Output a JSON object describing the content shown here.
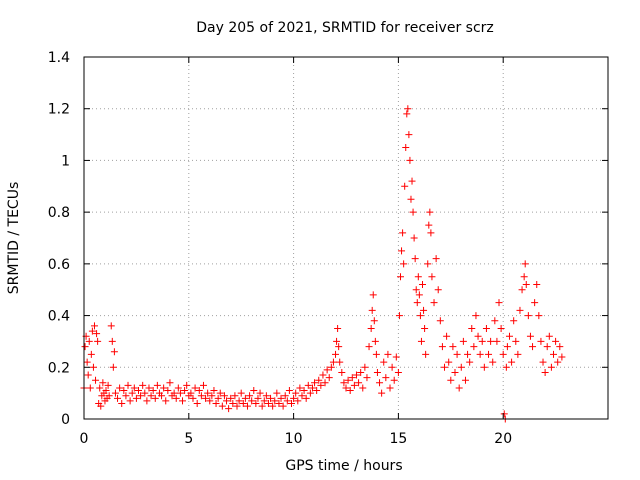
{
  "chart_data": {
    "type": "scatter",
    "title": "Day 205 of 2021, SRMTID for receiver scrz",
    "xlabel": "GPS time / hours",
    "ylabel": "SRMTID / TECUs",
    "xlim": [
      0,
      25
    ],
    "ylim": [
      0,
      1.4
    ],
    "xticks": [
      0,
      5,
      10,
      15,
      20
    ],
    "yticks": [
      0,
      0.2,
      0.4,
      0.6,
      0.8,
      1,
      1.2,
      1.4
    ],
    "xtick_labels": [
      "0",
      "5",
      "10",
      "15",
      "20"
    ],
    "ytick_labels": [
      "0",
      "0.2",
      "0.4",
      "0.6",
      "0.8",
      "1",
      "1.2",
      "1.4"
    ],
    "grid": true,
    "marker": "plus",
    "color": "#ff0000",
    "series": [
      {
        "name": "SRMTID",
        "points": [
          [
            0.0,
            0.12
          ],
          [
            0.05,
            0.28
          ],
          [
            0.1,
            0.32
          ],
          [
            0.15,
            0.22
          ],
          [
            0.2,
            0.17
          ],
          [
            0.25,
            0.3
          ],
          [
            0.3,
            0.12
          ],
          [
            0.35,
            0.25
          ],
          [
            0.4,
            0.34
          ],
          [
            0.45,
            0.2
          ],
          [
            0.5,
            0.36
          ],
          [
            0.55,
            0.15
          ],
          [
            0.6,
            0.33
          ],
          [
            0.65,
            0.3
          ],
          [
            0.7,
            0.06
          ],
          [
            0.75,
            0.12
          ],
          [
            0.8,
            0.05
          ],
          [
            0.85,
            0.09
          ],
          [
            0.9,
            0.14
          ],
          [
            0.95,
            0.1
          ],
          [
            1.0,
            0.07
          ],
          [
            1.05,
            0.11
          ],
          [
            1.1,
            0.08
          ],
          [
            1.15,
            0.13
          ],
          [
            1.2,
            0.09
          ],
          [
            1.3,
            0.36
          ],
          [
            1.35,
            0.3
          ],
          [
            1.4,
            0.2
          ],
          [
            1.45,
            0.26
          ],
          [
            1.5,
            0.1
          ],
          [
            1.6,
            0.08
          ],
          [
            1.7,
            0.12
          ],
          [
            1.8,
            0.06
          ],
          [
            1.9,
            0.11
          ],
          [
            2.0,
            0.09
          ],
          [
            2.1,
            0.13
          ],
          [
            2.2,
            0.07
          ],
          [
            2.3,
            0.1
          ],
          [
            2.4,
            0.12
          ],
          [
            2.5,
            0.08
          ],
          [
            2.6,
            0.11
          ],
          [
            2.7,
            0.09
          ],
          [
            2.8,
            0.13
          ],
          [
            2.9,
            0.1
          ],
          [
            3.0,
            0.07
          ],
          [
            3.1,
            0.12
          ],
          [
            3.2,
            0.09
          ],
          [
            3.3,
            0.11
          ],
          [
            3.4,
            0.08
          ],
          [
            3.5,
            0.13
          ],
          [
            3.6,
            0.1
          ],
          [
            3.7,
            0.09
          ],
          [
            3.8,
            0.12
          ],
          [
            3.9,
            0.07
          ],
          [
            4.0,
            0.11
          ],
          [
            4.1,
            0.14
          ],
          [
            4.2,
            0.09
          ],
          [
            4.3,
            0.1
          ],
          [
            4.4,
            0.08
          ],
          [
            4.5,
            0.12
          ],
          [
            4.6,
            0.1
          ],
          [
            4.7,
            0.07
          ],
          [
            4.8,
            0.11
          ],
          [
            4.9,
            0.13
          ],
          [
            5.0,
            0.09
          ],
          [
            5.1,
            0.1
          ],
          [
            5.2,
            0.08
          ],
          [
            5.3,
            0.12
          ],
          [
            5.4,
            0.06
          ],
          [
            5.5,
            0.11
          ],
          [
            5.6,
            0.09
          ],
          [
            5.7,
            0.13
          ],
          [
            5.8,
            0.08
          ],
          [
            5.9,
            0.1
          ],
          [
            6.0,
            0.07
          ],
          [
            6.1,
            0.09
          ],
          [
            6.2,
            0.11
          ],
          [
            6.3,
            0.06
          ],
          [
            6.4,
            0.08
          ],
          [
            6.5,
            0.1
          ],
          [
            6.6,
            0.05
          ],
          [
            6.7,
            0.09
          ],
          [
            6.8,
            0.07
          ],
          [
            6.9,
            0.04
          ],
          [
            7.0,
            0.08
          ],
          [
            7.1,
            0.06
          ],
          [
            7.2,
            0.09
          ],
          [
            7.3,
            0.05
          ],
          [
            7.4,
            0.07
          ],
          [
            7.5,
            0.1
          ],
          [
            7.6,
            0.06
          ],
          [
            7.7,
            0.08
          ],
          [
            7.8,
            0.05
          ],
          [
            7.9,
            0.09
          ],
          [
            8.0,
            0.07
          ],
          [
            8.1,
            0.11
          ],
          [
            8.2,
            0.06
          ],
          [
            8.3,
            0.08
          ],
          [
            8.4,
            0.1
          ],
          [
            8.5,
            0.05
          ],
          [
            8.6,
            0.07
          ],
          [
            8.7,
            0.09
          ],
          [
            8.8,
            0.06
          ],
          [
            8.9,
            0.08
          ],
          [
            9.0,
            0.05
          ],
          [
            9.1,
            0.07
          ],
          [
            9.2,
            0.1
          ],
          [
            9.3,
            0.06
          ],
          [
            9.4,
            0.08
          ],
          [
            9.5,
            0.05
          ],
          [
            9.6,
            0.09
          ],
          [
            9.7,
            0.07
          ],
          [
            9.8,
            0.11
          ],
          [
            9.9,
            0.06
          ],
          [
            10.0,
            0.08
          ],
          [
            10.1,
            0.1
          ],
          [
            10.2,
            0.07
          ],
          [
            10.3,
            0.12
          ],
          [
            10.4,
            0.09
          ],
          [
            10.5,
            0.11
          ],
          [
            10.6,
            0.08
          ],
          [
            10.7,
            0.13
          ],
          [
            10.8,
            0.1
          ],
          [
            10.9,
            0.12
          ],
          [
            11.0,
            0.14
          ],
          [
            11.1,
            0.11
          ],
          [
            11.2,
            0.15
          ],
          [
            11.3,
            0.13
          ],
          [
            11.4,
            0.17
          ],
          [
            11.5,
            0.14
          ],
          [
            11.6,
            0.19
          ],
          [
            11.7,
            0.16
          ],
          [
            11.8,
            0.2
          ],
          [
            11.9,
            0.22
          ],
          [
            12.0,
            0.25
          ],
          [
            12.05,
            0.3
          ],
          [
            12.1,
            0.35
          ],
          [
            12.15,
            0.28
          ],
          [
            12.2,
            0.22
          ],
          [
            12.3,
            0.18
          ],
          [
            12.4,
            0.14
          ],
          [
            12.5,
            0.12
          ],
          [
            12.6,
            0.15
          ],
          [
            12.7,
            0.11
          ],
          [
            12.8,
            0.16
          ],
          [
            12.9,
            0.13
          ],
          [
            13.0,
            0.17
          ],
          [
            13.1,
            0.14
          ],
          [
            13.2,
            0.18
          ],
          [
            13.3,
            0.12
          ],
          [
            13.4,
            0.2
          ],
          [
            13.5,
            0.16
          ],
          [
            13.6,
            0.28
          ],
          [
            13.7,
            0.35
          ],
          [
            13.75,
            0.42
          ],
          [
            13.8,
            0.48
          ],
          [
            13.85,
            0.38
          ],
          [
            13.9,
            0.3
          ],
          [
            13.95,
            0.25
          ],
          [
            14.0,
            0.18
          ],
          [
            14.1,
            0.14
          ],
          [
            14.2,
            0.1
          ],
          [
            14.3,
            0.22
          ],
          [
            14.4,
            0.16
          ],
          [
            14.5,
            0.25
          ],
          [
            14.6,
            0.12
          ],
          [
            14.7,
            0.2
          ],
          [
            14.8,
            0.15
          ],
          [
            14.9,
            0.24
          ],
          [
            15.0,
            0.18
          ],
          [
            15.05,
            0.4
          ],
          [
            15.1,
            0.55
          ],
          [
            15.15,
            0.65
          ],
          [
            15.2,
            0.72
          ],
          [
            15.25,
            0.6
          ],
          [
            15.3,
            0.9
          ],
          [
            15.35,
            1.05
          ],
          [
            15.4,
            1.18
          ],
          [
            15.45,
            1.2
          ],
          [
            15.5,
            1.1
          ],
          [
            15.55,
            1.0
          ],
          [
            15.6,
            0.85
          ],
          [
            15.65,
            0.92
          ],
          [
            15.7,
            0.8
          ],
          [
            15.75,
            0.7
          ],
          [
            15.8,
            0.62
          ],
          [
            15.85,
            0.5
          ],
          [
            15.9,
            0.45
          ],
          [
            15.95,
            0.55
          ],
          [
            16.0,
            0.48
          ],
          [
            16.05,
            0.4
          ],
          [
            16.1,
            0.3
          ],
          [
            16.15,
            0.52
          ],
          [
            16.2,
            0.42
          ],
          [
            16.25,
            0.35
          ],
          [
            16.3,
            0.25
          ],
          [
            16.4,
            0.6
          ],
          [
            16.45,
            0.75
          ],
          [
            16.5,
            0.8
          ],
          [
            16.55,
            0.72
          ],
          [
            16.6,
            0.55
          ],
          [
            16.7,
            0.45
          ],
          [
            16.8,
            0.62
          ],
          [
            16.9,
            0.5
          ],
          [
            17.0,
            0.38
          ],
          [
            17.1,
            0.28
          ],
          [
            17.2,
            0.2
          ],
          [
            17.3,
            0.32
          ],
          [
            17.4,
            0.22
          ],
          [
            17.5,
            0.15
          ],
          [
            17.6,
            0.28
          ],
          [
            17.7,
            0.18
          ],
          [
            17.8,
            0.25
          ],
          [
            17.9,
            0.12
          ],
          [
            18.0,
            0.2
          ],
          [
            18.1,
            0.3
          ],
          [
            18.2,
            0.15
          ],
          [
            18.3,
            0.25
          ],
          [
            18.4,
            0.22
          ],
          [
            18.5,
            0.35
          ],
          [
            18.6,
            0.28
          ],
          [
            18.7,
            0.4
          ],
          [
            18.8,
            0.32
          ],
          [
            18.9,
            0.25
          ],
          [
            19.0,
            0.3
          ],
          [
            19.1,
            0.2
          ],
          [
            19.2,
            0.35
          ],
          [
            19.3,
            0.25
          ],
          [
            19.4,
            0.3
          ],
          [
            19.5,
            0.22
          ],
          [
            19.6,
            0.38
          ],
          [
            19.7,
            0.3
          ],
          [
            19.8,
            0.45
          ],
          [
            19.9,
            0.35
          ],
          [
            20.0,
            0.25
          ],
          [
            20.05,
            0.02
          ],
          [
            20.1,
            0.0
          ],
          [
            20.15,
            0.2
          ],
          [
            20.2,
            0.28
          ],
          [
            20.3,
            0.32
          ],
          [
            20.4,
            0.22
          ],
          [
            20.5,
            0.38
          ],
          [
            20.6,
            0.3
          ],
          [
            20.7,
            0.25
          ],
          [
            20.8,
            0.42
          ],
          [
            20.9,
            0.5
          ],
          [
            21.0,
            0.55
          ],
          [
            21.05,
            0.6
          ],
          [
            21.1,
            0.52
          ],
          [
            21.2,
            0.4
          ],
          [
            21.3,
            0.32
          ],
          [
            21.4,
            0.28
          ],
          [
            21.5,
            0.45
          ],
          [
            21.6,
            0.52
          ],
          [
            21.7,
            0.4
          ],
          [
            21.8,
            0.3
          ],
          [
            21.9,
            0.22
          ],
          [
            22.0,
            0.18
          ],
          [
            22.1,
            0.28
          ],
          [
            22.2,
            0.32
          ],
          [
            22.3,
            0.2
          ],
          [
            22.4,
            0.25
          ],
          [
            22.5,
            0.3
          ],
          [
            22.6,
            0.22
          ],
          [
            22.7,
            0.28
          ],
          [
            22.8,
            0.24
          ]
        ]
      }
    ]
  }
}
